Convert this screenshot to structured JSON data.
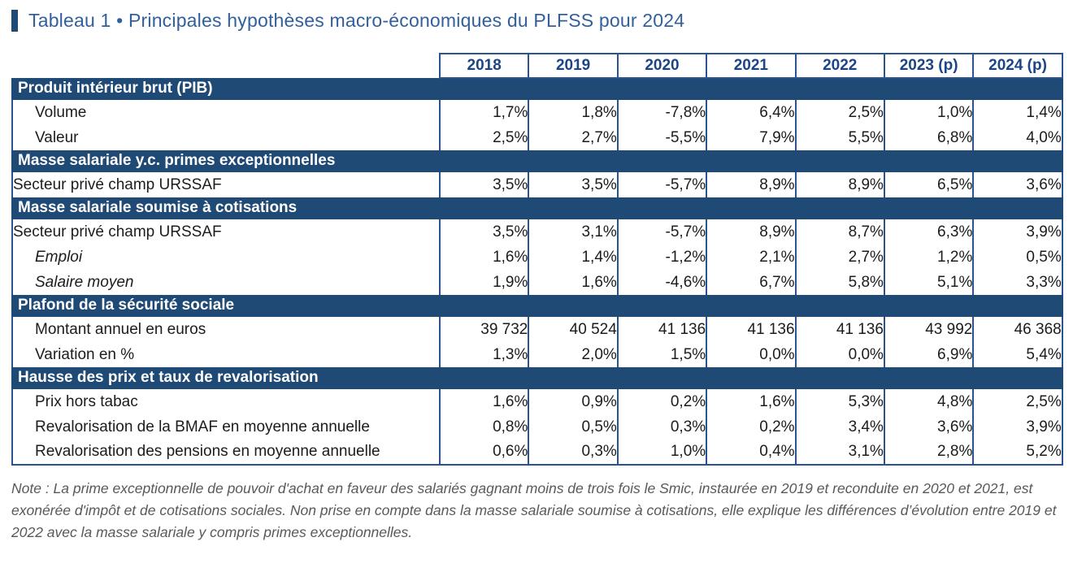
{
  "title": {
    "text": "Tableau 1 • Principales hypothèses macro-économiques du PLFSS pour 2024"
  },
  "colors": {
    "navy_section_bg": "#1f4a75",
    "cell_border_blue": "#2a5391",
    "year_header_text": "#1c4587",
    "title_blue": "#31609c",
    "note_gray": "#595959"
  },
  "table": {
    "year_headers": [
      "2018",
      "2019",
      "2020",
      "2021",
      "2022",
      "2023 (p)",
      "2024 (p)"
    ],
    "sections": [
      {
        "header": "Produit intérieur brut (PIB)",
        "rows": [
          {
            "label": "Volume",
            "indent": true,
            "italic": false,
            "values": [
              "1,7%",
              "1,8%",
              "-7,8%",
              "6,4%",
              "2,5%",
              "1,0%",
              "1,4%"
            ]
          },
          {
            "label": "Valeur",
            "indent": true,
            "italic": false,
            "values": [
              "2,5%",
              "2,7%",
              "-5,5%",
              "7,9%",
              "5,5%",
              "6,8%",
              "4,0%"
            ]
          }
        ]
      },
      {
        "header": "Masse salariale y.c. primes exceptionnelles",
        "rows": [
          {
            "label": "Secteur privé champ URSSAF",
            "indent": false,
            "italic": false,
            "values": [
              "3,5%",
              "3,5%",
              "-5,7%",
              "8,9%",
              "8,9%",
              "6,5%",
              "3,6%"
            ]
          }
        ]
      },
      {
        "header": "Masse salariale soumise à cotisations",
        "rows": [
          {
            "label": "Secteur privé champ URSSAF",
            "indent": false,
            "italic": false,
            "values": [
              "3,5%",
              "3,1%",
              "-5,7%",
              "8,9%",
              "8,7%",
              "6,3%",
              "3,9%"
            ]
          },
          {
            "label": "Emploi",
            "indent": true,
            "italic": true,
            "values": [
              "1,6%",
              "1,4%",
              "-1,2%",
              "2,1%",
              "2,7%",
              "1,2%",
              "0,5%"
            ]
          },
          {
            "label": "Salaire moyen",
            "indent": true,
            "italic": true,
            "values": [
              "1,9%",
              "1,6%",
              "-4,6%",
              "6,7%",
              "5,8%",
              "5,1%",
              "3,3%"
            ]
          }
        ]
      },
      {
        "header": "Plafond de la sécurité sociale",
        "rows": [
          {
            "label": "Montant annuel en euros",
            "indent": true,
            "italic": false,
            "values": [
              "39 732",
              "40 524",
              "41 136",
              "41 136",
              "41 136",
              "43 992",
              "46 368"
            ]
          },
          {
            "label": "Variation en %",
            "indent": true,
            "italic": false,
            "values": [
              "1,3%",
              "2,0%",
              "1,5%",
              "0,0%",
              "0,0%",
              "6,9%",
              "5,4%"
            ]
          }
        ]
      },
      {
        "header": "Hausse des prix et taux de revalorisation",
        "rows": [
          {
            "label": "Prix hors tabac",
            "indent": true,
            "italic": false,
            "values": [
              "1,6%",
              "0,9%",
              "0,2%",
              "1,6%",
              "5,3%",
              "4,8%",
              "2,5%"
            ]
          },
          {
            "label": "Revalorisation de la BMAF en moyenne annuelle",
            "indent": true,
            "italic": false,
            "values": [
              "0,8%",
              "0,5%",
              "0,3%",
              "0,2%",
              "3,4%",
              "3,6%",
              "3,9%"
            ]
          },
          {
            "label": "Revalorisation des pensions en moyenne annuelle",
            "indent": true,
            "italic": false,
            "values": [
              "0,6%",
              "0,3%",
              "1,0%",
              "0,4%",
              "3,1%",
              "2,8%",
              "5,2%"
            ]
          }
        ]
      }
    ]
  },
  "note": "Note : La prime exceptionnelle de pouvoir d'achat en faveur des salariés gagnant moins de trois fois le Smic, instaurée en 2019 et reconduite en 2020 et 2021, est exonérée d'impôt et de cotisations sociales. Non prise en compte dans la masse salariale soumise à cotisations, elle explique les différences d’évolution entre 2019 et 2022 avec la masse salariale y compris primes exceptionnelles."
}
